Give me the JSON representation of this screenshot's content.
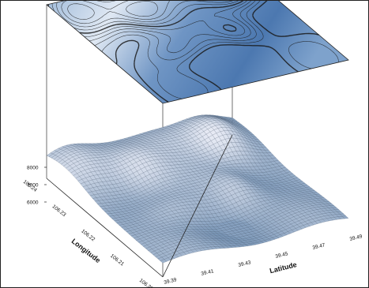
{
  "chart_data": {
    "type": "surface",
    "title": "",
    "xlabel": "Latitude",
    "ylabel": "Longitude",
    "zlabel": "",
    "x_ticks": [
      "39.39",
      "39.41",
      "39.43",
      "39.45",
      "39.47",
      "39.49"
    ],
    "y_ticks": [
      "106.20",
      "106.21",
      "106.22",
      "106.23",
      "106.24"
    ],
    "z_ticks": [
      "6000",
      "7000",
      "8000"
    ],
    "xlim": [
      39.39,
      39.49
    ],
    "ylim": [
      106.2,
      106.24
    ],
    "zlim": [
      6000,
      8000
    ],
    "contour_plane": "top",
    "colors": {
      "surface_low": "#2e5d8e",
      "surface_high": "#e8eef6",
      "contour_line": "#1a1a1a",
      "mesh": "#1b2d44"
    }
  }
}
